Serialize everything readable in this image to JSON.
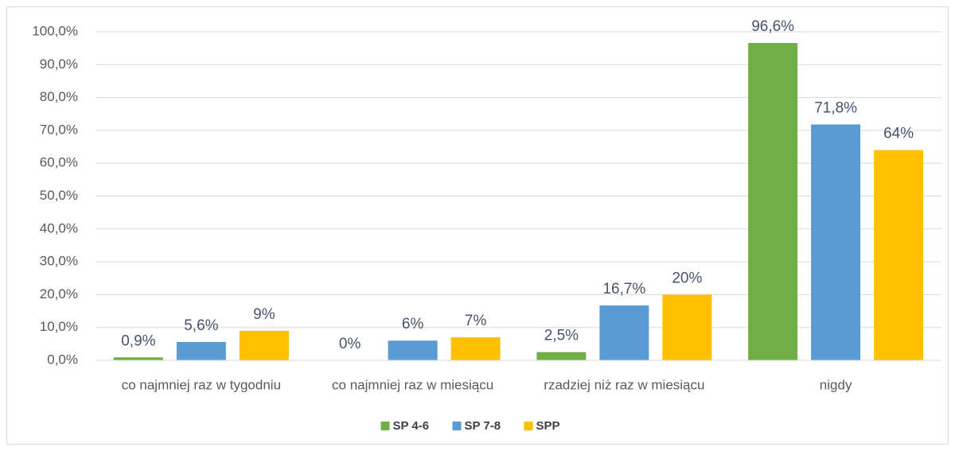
{
  "chart_data": {
    "type": "bar",
    "categories": [
      "co najmniej raz w tygodniu",
      "co najmniej raz w miesiącu",
      "rzadziej niż raz w miesiącu",
      "nigdy"
    ],
    "series": [
      {
        "name": "SP 4-6",
        "color": "#70ad47",
        "values": [
          0.9,
          0,
          2.5,
          96.6
        ],
        "value_labels": [
          "0,9%",
          "0%",
          "2,5%",
          "96,6%"
        ]
      },
      {
        "name": "SP 7-8",
        "color": "#5b9bd5",
        "values": [
          5.6,
          6,
          16.7,
          71.8
        ],
        "value_labels": [
          "5,6%",
          "6%",
          "16,7%",
          "71,8%"
        ]
      },
      {
        "name": "SPP",
        "color": "#ffc000",
        "values": [
          9,
          7,
          20,
          64
        ],
        "value_labels": [
          "9%",
          "7%",
          "20%",
          "64%"
        ]
      }
    ],
    "ylim": [
      0,
      100
    ],
    "yticks": [
      {
        "value": 0,
        "label": "0,0%"
      },
      {
        "value": 10,
        "label": "10,0%"
      },
      {
        "value": 20,
        "label": "20,0%"
      },
      {
        "value": 30,
        "label": "30,0%"
      },
      {
        "value": 40,
        "label": "40,0%"
      },
      {
        "value": 50,
        "label": "50,0%"
      },
      {
        "value": 60,
        "label": "60,0%"
      },
      {
        "value": 70,
        "label": "70,0%"
      },
      {
        "value": 80,
        "label": "80,0%"
      },
      {
        "value": 90,
        "label": "90,0%"
      },
      {
        "value": 100,
        "label": "100,0%"
      }
    ],
    "grid": true,
    "legend": "bottom"
  }
}
